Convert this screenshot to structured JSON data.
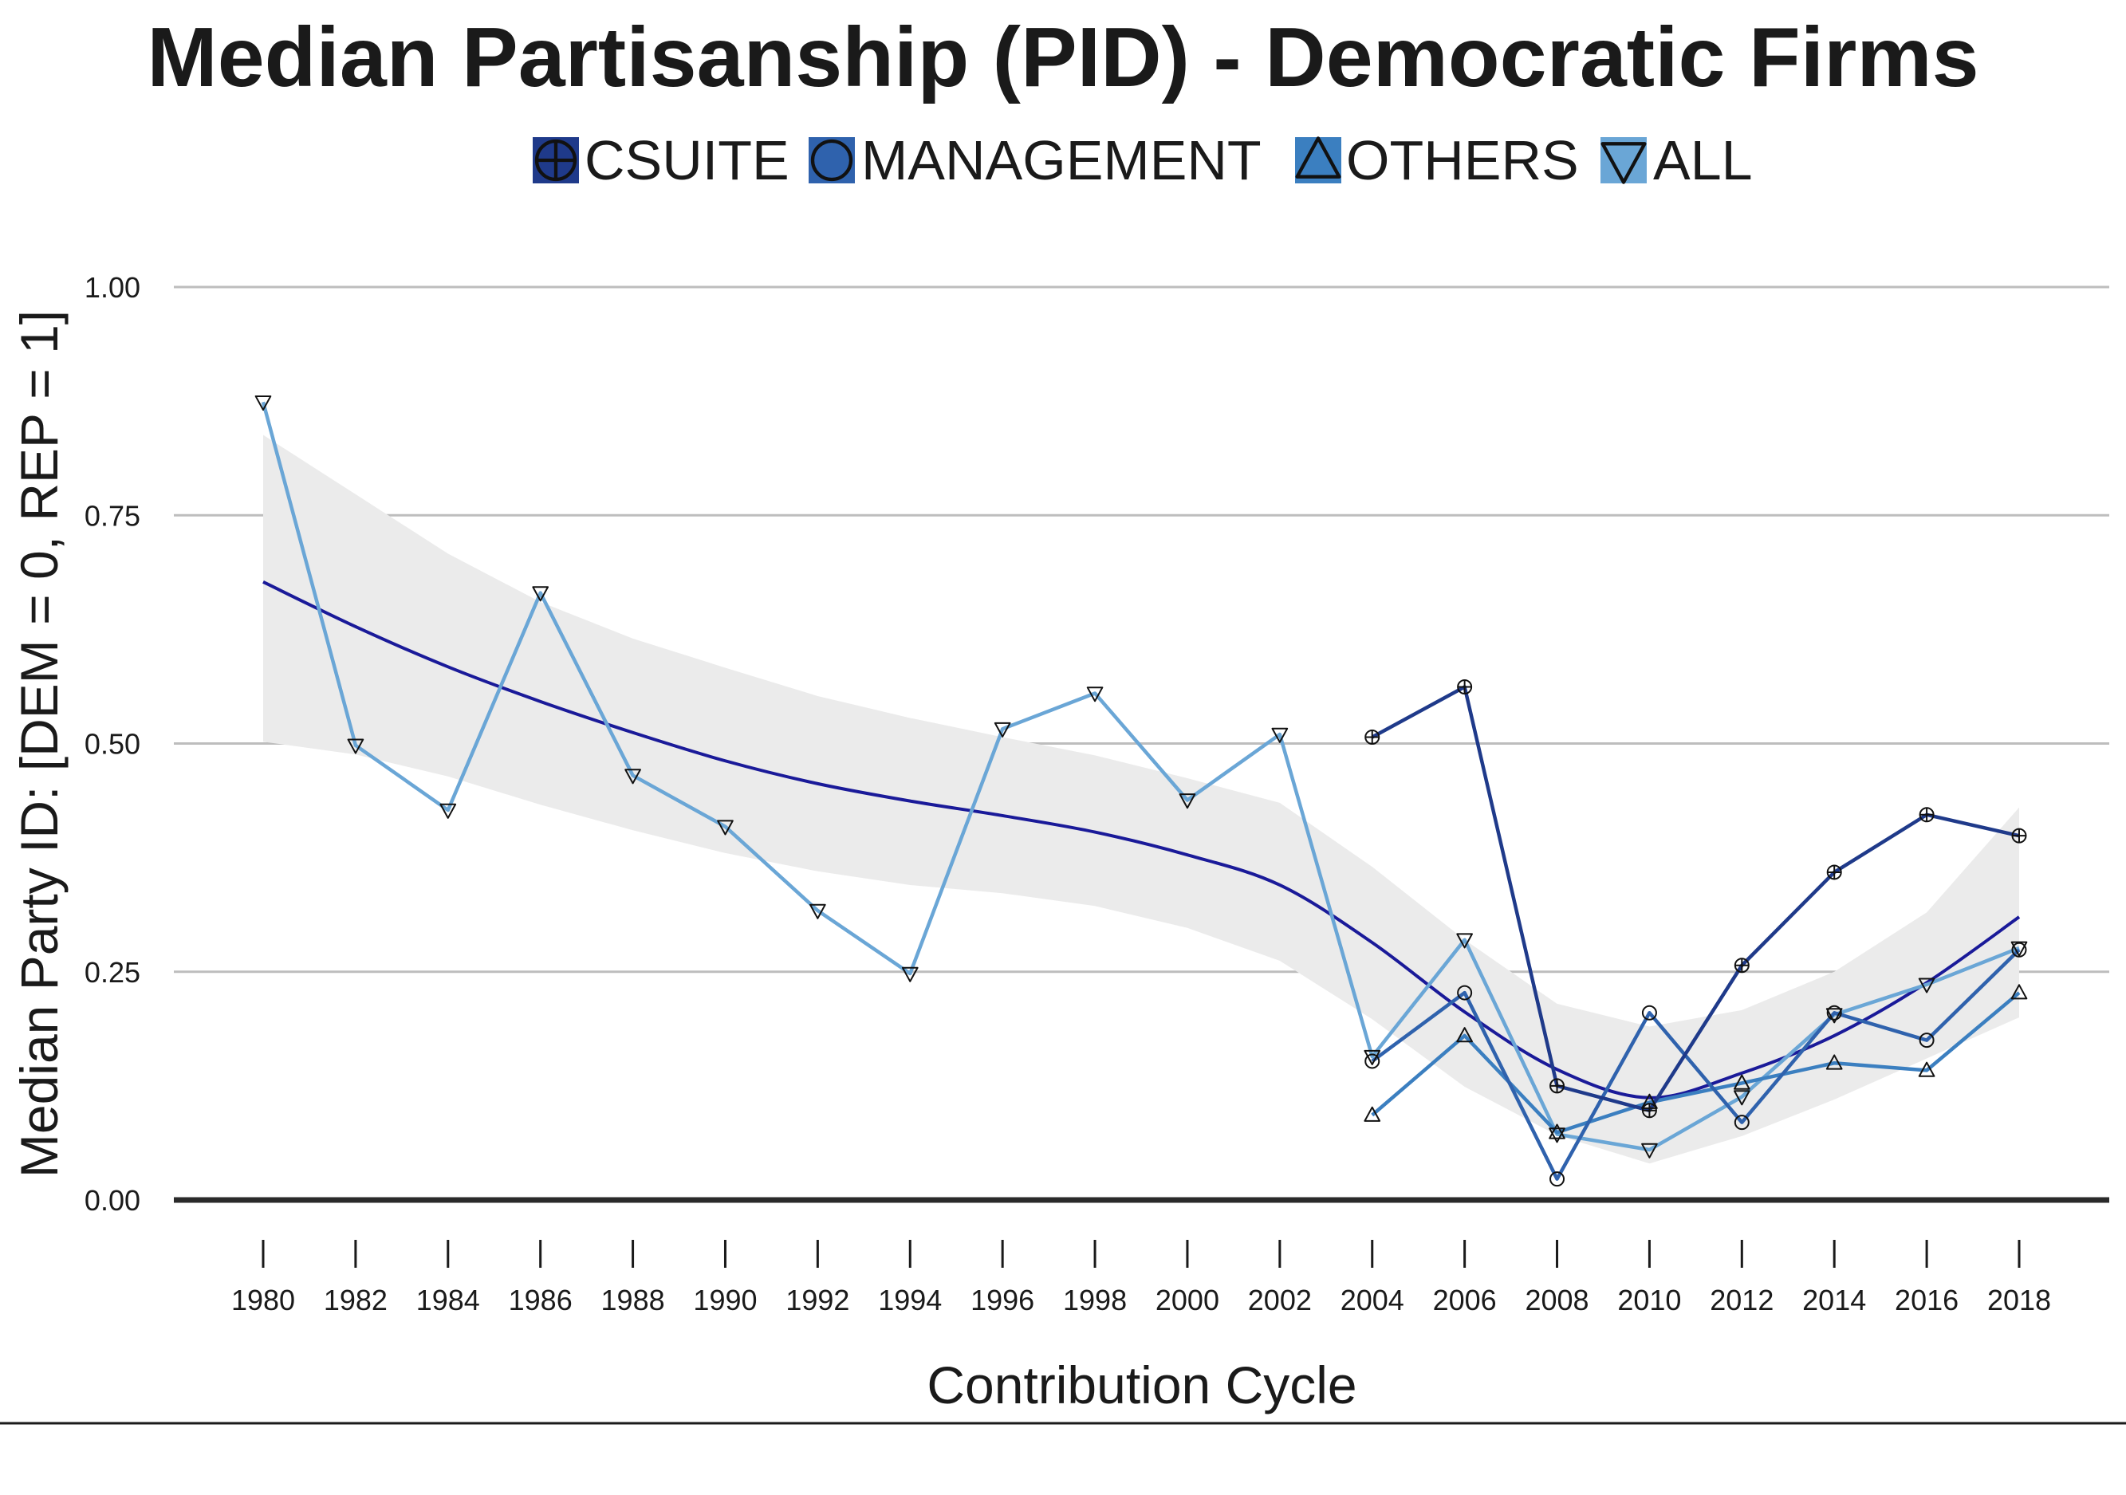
{
  "chart_data": {
    "type": "line",
    "title": "Median Partisanship (PID) - Democratic Firms",
    "xlabel": "Contribution Cycle",
    "ylabel": "Median Party ID: [DEM = 0, REP = 1]",
    "xlim": [
      1980,
      2018
    ],
    "ylim": [
      0,
      1
    ],
    "x_ticks": [
      1980,
      1982,
      1984,
      1986,
      1988,
      1990,
      1992,
      1994,
      1996,
      1998,
      2000,
      2002,
      2004,
      2006,
      2008,
      2010,
      2012,
      2014,
      2016,
      2018
    ],
    "y_ticks": [
      "0.00",
      "0.25",
      "0.50",
      "0.75",
      "1.00"
    ],
    "grid": "horizontal",
    "legend_position": "top",
    "series": [
      {
        "name": "CSUITE",
        "marker": "circle-plus",
        "color": "#1f3a8a",
        "x": [
          2004,
          2006,
          2008,
          2010,
          2012,
          2014,
          2016,
          2018
        ],
        "values": [
          0.507,
          0.562,
          0.125,
          0.098,
          0.257,
          0.359,
          0.422,
          0.399
        ]
      },
      {
        "name": "MANAGEMENT",
        "marker": "circle",
        "color": "#2f62ad",
        "x": [
          2004,
          2006,
          2008,
          2010,
          2012,
          2014,
          2016,
          2018
        ],
        "values": [
          0.152,
          0.227,
          0.023,
          0.205,
          0.085,
          0.205,
          0.175,
          0.274
        ]
      },
      {
        "name": "OTHERS",
        "marker": "triangle-up",
        "color": "#3b7fc0",
        "x": [
          2004,
          2006,
          2008,
          2010,
          2012,
          2014,
          2016,
          2018
        ],
        "values": [
          0.093,
          0.18,
          0.074,
          0.107,
          0.128,
          0.15,
          0.142,
          0.227
        ]
      },
      {
        "name": "ALL",
        "marker": "triangle-down",
        "color": "#6aa6d6",
        "x": [
          1980,
          1982,
          1984,
          1986,
          1988,
          1990,
          1992,
          1994,
          1996,
          1998,
          2000,
          2002,
          2004,
          2006,
          2008,
          2010,
          2012,
          2014,
          2016,
          2018
        ],
        "values": [
          0.874,
          0.498,
          0.427,
          0.665,
          0.465,
          0.409,
          0.317,
          0.248,
          0.516,
          0.555,
          0.438,
          0.51,
          0.157,
          0.285,
          0.072,
          0.055,
          0.113,
          0.203,
          0.236,
          0.276
        ]
      }
    ],
    "trend": {
      "color": "#1a1a99",
      "band_color": "#ebebeb",
      "x": [
        1980,
        1982,
        1984,
        1986,
        1988,
        1990,
        1992,
        1994,
        1996,
        1998,
        2000,
        2002,
        2004,
        2006,
        2008,
        2010,
        2012,
        2014,
        2016,
        2018
      ],
      "fit": [
        0.677,
        0.628,
        0.584,
        0.546,
        0.512,
        0.481,
        0.456,
        0.437,
        0.421,
        0.403,
        0.378,
        0.345,
        0.282,
        0.206,
        0.143,
        0.112,
        0.139,
        0.18,
        0.238,
        0.31
      ],
      "lower": [
        0.502,
        0.488,
        0.464,
        0.433,
        0.405,
        0.38,
        0.36,
        0.345,
        0.336,
        0.322,
        0.298,
        0.262,
        0.198,
        0.124,
        0.071,
        0.04,
        0.07,
        0.11,
        0.155,
        0.2
      ],
      "upper": [
        0.838,
        0.773,
        0.708,
        0.655,
        0.615,
        0.583,
        0.552,
        0.528,
        0.507,
        0.487,
        0.462,
        0.435,
        0.365,
        0.285,
        0.215,
        0.19,
        0.208,
        0.25,
        0.315,
        0.43
      ]
    }
  }
}
